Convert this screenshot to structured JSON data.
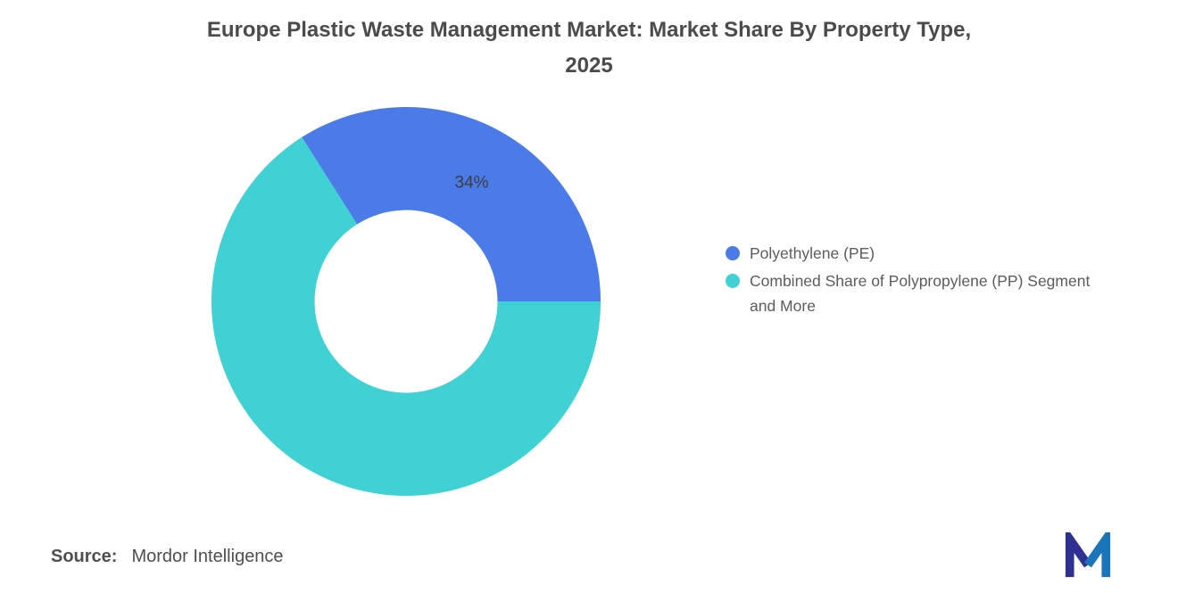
{
  "title": {
    "line1": "Europe Plastic Waste Management Market: Market Share By Property Type,",
    "line2": "2025"
  },
  "source": {
    "label": "Source:",
    "value": "Mordor Intelligence"
  },
  "logo": {
    "name": "mordor-intelligence-logo",
    "color_dark": "#2E3192",
    "color_light": "#1B75BB"
  },
  "chart_data": {
    "type": "pie",
    "subtype": "donut",
    "title": "Europe Plastic Waste Management Market: Market Share By Property Type, 2025",
    "legend_position": "right",
    "inner_radius_ratio": 0.47,
    "data_label_color": "#3d3d3d",
    "slices": [
      {
        "label": "Polyethylene (PE)",
        "value": 34,
        "color": "#4A7BE8",
        "data_label": "34%"
      },
      {
        "label": "Combined Share of Polypropylene (PP) Segment and More",
        "value": 66,
        "color": "#3FD1D4",
        "data_label": ""
      }
    ]
  }
}
